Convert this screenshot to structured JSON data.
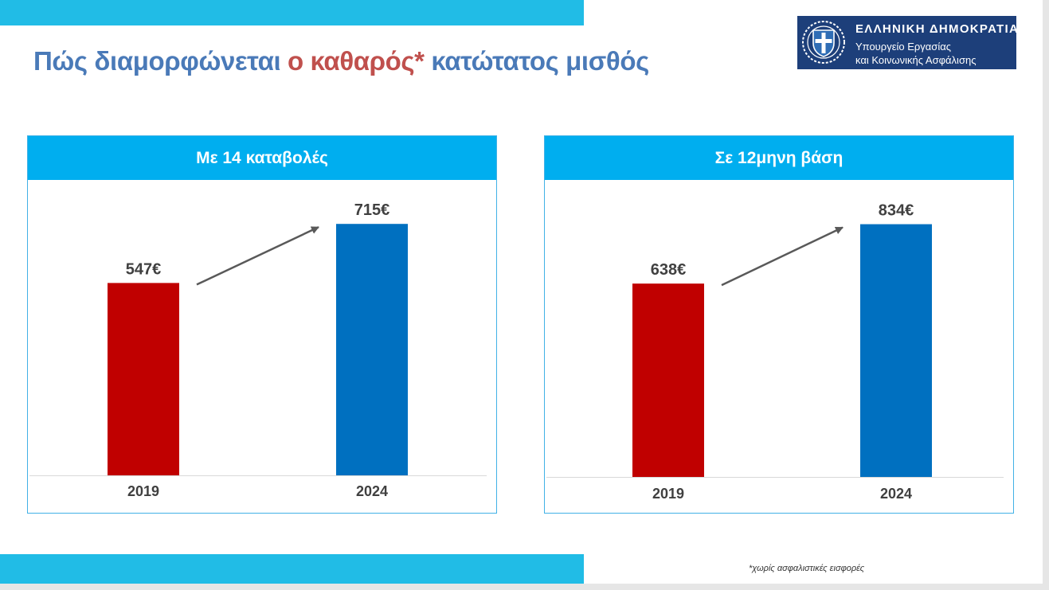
{
  "title": {
    "part1": "Πώς διαμορφώνεται ",
    "accent": "ο καθαρός*",
    "part2": " κατώτατος μισθός"
  },
  "logo": {
    "line1": "ΕΛΛΗΝΙΚΗ ΔΗΜΟΚΡΑΤΙΑ",
    "line2": "Υπουργείο Εργασίας",
    "line3": "και Κοινωνικής Ασφάλισης",
    "icon": "greek-coat-of-arms-icon"
  },
  "colors": {
    "band": "#21bce6",
    "panel_header": "#00aeef",
    "bar_2019": "#c00000",
    "bar_2024": "#0070c0",
    "title_blue": "#4a7ab8",
    "title_accent": "#c0504d"
  },
  "footnote": "*χωρίς ασφαλιστικές εισφορές",
  "chart_data": [
    {
      "type": "bar",
      "title": "Με 14 καταβολές",
      "categories": [
        "2019",
        "2024"
      ],
      "values": [
        547,
        715
      ],
      "labels": [
        "547€",
        "715€"
      ],
      "ylim": [
        0,
        840
      ],
      "grid": false,
      "annotation": "arrow-up-right between bars"
    },
    {
      "type": "bar",
      "title": "Σε 12μηνη βάση",
      "categories": [
        "2019",
        "2024"
      ],
      "values": [
        638,
        834
      ],
      "labels": [
        "638€",
        "834€"
      ],
      "ylim": [
        0,
        980
      ],
      "grid": false,
      "annotation": "arrow-up-right between bars"
    }
  ]
}
